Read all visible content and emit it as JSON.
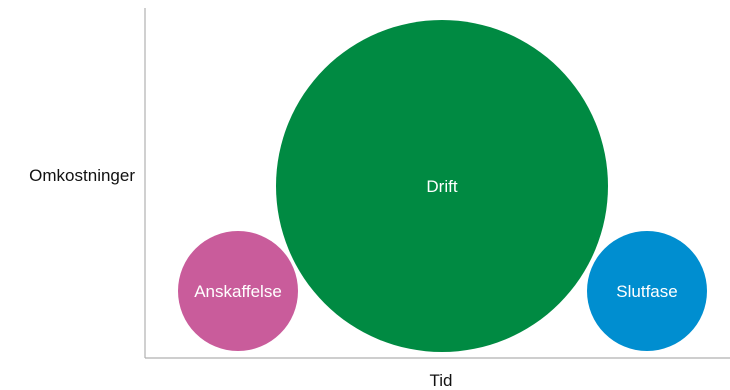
{
  "diagram": {
    "y_axis_label": "Omkostninger",
    "x_axis_label": "Tid",
    "phases": [
      {
        "label": "Anskaffelse",
        "color": "#c95c9b"
      },
      {
        "label": "Drift",
        "color": "#008a42"
      },
      {
        "label": "Slutfase",
        "color": "#008ed0"
      }
    ],
    "axis_color": "#b0b0b0"
  }
}
